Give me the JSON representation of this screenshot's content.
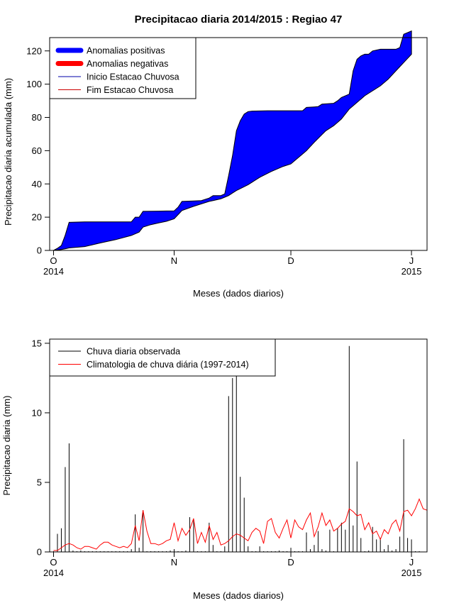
{
  "title": "Precipitacao diaria 2014/2015 : Regiao 47",
  "colors": {
    "positive": "#0000ff",
    "negative": "#ff0000",
    "observed": "#000000",
    "climatology": "#ff0000"
  },
  "chart_data": [
    {
      "type": "area",
      "name": "accumulated",
      "title": "Precipitacao diaria 2014/2015 : Regiao 47",
      "xlabel": "Meses (dados diarios)",
      "ylabel": "Precipitacao diaria acumulada (mm)",
      "xlim": [
        -1,
        96
      ],
      "ylim": [
        0,
        128
      ],
      "xticks": [
        {
          "day": 0,
          "label": "O",
          "year": "2014"
        },
        {
          "day": 31,
          "label": "N",
          "year": ""
        },
        {
          "day": 61,
          "label": "D",
          "year": ""
        },
        {
          "day": 92,
          "label": "J",
          "year": "2015"
        }
      ],
      "yticks": [
        0,
        20,
        40,
        60,
        80,
        100,
        120
      ],
      "legend": {
        "position": "top-left",
        "entries": [
          {
            "label": "Anomalias positivas",
            "style": "thick",
            "color": "#0000ff"
          },
          {
            "label": "Anomalias negativas",
            "style": "thick",
            "color": "#ff0000"
          },
          {
            "label": "Inicio Estacao Chuvosa",
            "style": "line",
            "color": "#0000aa"
          },
          {
            "label": "Fim Estacao Chuvosa",
            "style": "line",
            "color": "#cc0000"
          }
        ]
      },
      "observed_cumulative": [
        [
          0,
          0
        ],
        [
          1,
          1.3
        ],
        [
          2,
          3
        ],
        [
          3,
          9.1
        ],
        [
          4,
          16.9
        ],
        [
          8,
          17.2
        ],
        [
          20,
          17.2
        ],
        [
          21,
          20
        ],
        [
          22,
          20
        ],
        [
          23,
          23.5
        ],
        [
          31,
          23.8
        ],
        [
          32,
          26
        ],
        [
          33,
          29.5
        ],
        [
          38,
          30
        ],
        [
          40,
          31.5
        ],
        [
          41,
          33
        ],
        [
          43,
          33
        ],
        [
          44,
          34
        ],
        [
          45,
          45
        ],
        [
          46,
          57
        ],
        [
          47,
          72
        ],
        [
          48,
          78
        ],
        [
          49,
          82
        ],
        [
          50,
          83.5
        ],
        [
          51,
          83.8
        ],
        [
          55,
          84
        ],
        [
          64,
          84
        ],
        [
          65,
          86
        ],
        [
          68,
          86.5
        ],
        [
          69,
          88
        ],
        [
          72,
          88.5
        ],
        [
          73,
          90
        ],
        [
          74,
          92
        ],
        [
          76,
          94
        ],
        [
          77,
          108
        ],
        [
          78,
          115
        ],
        [
          79,
          117
        ],
        [
          80,
          118
        ],
        [
          81,
          118
        ],
        [
          82,
          120
        ],
        [
          84,
          121
        ],
        [
          88,
          121
        ],
        [
          89,
          122
        ],
        [
          90,
          130
        ],
        [
          91,
          131
        ],
        [
          92,
          132
        ]
      ],
      "climatology_cumulative": [
        [
          0,
          0
        ],
        [
          2,
          0.5
        ],
        [
          4,
          1.5
        ],
        [
          8,
          2.3
        ],
        [
          12,
          4.5
        ],
        [
          16,
          6.5
        ],
        [
          20,
          9
        ],
        [
          22,
          11
        ],
        [
          23,
          14
        ],
        [
          25,
          15.5
        ],
        [
          27,
          16.5
        ],
        [
          29,
          17.5
        ],
        [
          31,
          19
        ],
        [
          33,
          24
        ],
        [
          36,
          26.5
        ],
        [
          40,
          29.5
        ],
        [
          43,
          31
        ],
        [
          45,
          33
        ],
        [
          47,
          36
        ],
        [
          50,
          39.5
        ],
        [
          53,
          44
        ],
        [
          56,
          47.5
        ],
        [
          59,
          50.5
        ],
        [
          61,
          52
        ],
        [
          63,
          56
        ],
        [
          65,
          60
        ],
        [
          67,
          65
        ],
        [
          70,
          72
        ],
        [
          72,
          75
        ],
        [
          74,
          79
        ],
        [
          76,
          85
        ],
        [
          78,
          89
        ],
        [
          80,
          93
        ],
        [
          82,
          96
        ],
        [
          84,
          99
        ],
        [
          86,
          103
        ],
        [
          88,
          108
        ],
        [
          90,
          113
        ],
        [
          92,
          118
        ],
        [
          93,
          120
        ]
      ]
    },
    {
      "type": "bar",
      "name": "daily",
      "xlabel": "Meses (dados diarios)",
      "ylabel": "Precipitacao diaria (mm)",
      "xlim": [
        -1,
        96
      ],
      "ylim": [
        0,
        15.3
      ],
      "xticks": [
        {
          "day": 0,
          "label": "O",
          "year": "2014"
        },
        {
          "day": 31,
          "label": "N",
          "year": ""
        },
        {
          "day": 61,
          "label": "D",
          "year": ""
        },
        {
          "day": 92,
          "label": "J",
          "year": "2015"
        }
      ],
      "yticks": [
        0,
        5,
        10,
        15
      ],
      "legend": {
        "position": "top-left",
        "entries": [
          {
            "label": "Chuva diaria observada",
            "color": "#000000"
          },
          {
            "label": "Climatologia de chuva diária (1997-2014)",
            "color": "#ff0000"
          }
        ]
      },
      "observed_days": [
        0,
        1,
        2,
        3,
        4,
        5,
        6,
        7,
        8,
        9,
        10,
        11,
        12,
        13,
        14,
        15,
        16,
        17,
        18,
        19,
        20,
        21,
        22,
        23,
        24,
        25,
        26,
        27,
        28,
        29,
        30,
        31,
        32,
        33,
        34,
        35,
        36,
        37,
        38,
        39,
        40,
        41,
        42,
        43,
        44,
        45,
        46,
        47,
        48,
        49,
        50,
        51,
        52,
        53,
        54,
        55,
        56,
        57,
        58,
        59,
        60,
        61,
        62,
        63,
        64,
        65,
        66,
        67,
        68,
        69,
        70,
        71,
        72,
        73,
        74,
        75,
        76,
        77,
        78,
        79,
        80,
        81,
        82,
        83,
        84,
        85,
        86,
        87,
        88,
        89,
        90,
        91,
        92,
        93,
        94
      ],
      "observed_values": [
        0,
        1.3,
        1.7,
        6.1,
        7.8,
        0.1,
        0,
        0.1,
        0,
        0,
        0,
        0,
        0,
        0,
        0,
        0,
        0,
        0,
        0,
        0,
        0.2,
        2.7,
        0.3,
        3,
        0,
        0,
        0,
        0,
        0,
        0,
        0.1,
        0.2,
        0,
        0,
        0.1,
        2.5,
        2.4,
        0,
        0,
        0,
        2.1,
        0.5,
        0,
        0,
        0.4,
        11.2,
        12.5,
        13.5,
        5.4,
        3.9,
        0.4,
        0,
        0,
        0.4,
        0,
        0,
        0,
        0,
        0.1,
        0,
        0,
        0.3,
        0,
        0,
        0,
        1.4,
        0.2,
        0.5,
        1.5,
        0.2,
        0.1,
        1.6,
        0,
        1.7,
        2.1,
        1.6,
        14.8,
        1.9,
        6.5,
        1,
        0,
        0.1,
        1.8,
        0.9,
        1,
        0.2,
        0.5,
        0.1,
        0.2,
        1.1,
        8.1,
        1,
        0.9,
        0,
        0
      ],
      "climatology_days": [
        0,
        1,
        2,
        3,
        4,
        5,
        6,
        7,
        8,
        9,
        10,
        11,
        12,
        13,
        14,
        15,
        16,
        17,
        18,
        19,
        20,
        21,
        22,
        23,
        24,
        25,
        26,
        27,
        28,
        29,
        30,
        31,
        32,
        33,
        34,
        35,
        36,
        37,
        38,
        39,
        40,
        41,
        42,
        43,
        44,
        45,
        46,
        47,
        48,
        49,
        50,
        51,
        52,
        53,
        54,
        55,
        56,
        57,
        58,
        59,
        60,
        61,
        62,
        63,
        64,
        65,
        66,
        67,
        68,
        69,
        70,
        71,
        72,
        73,
        74,
        75,
        76,
        77,
        78,
        79,
        80,
        81,
        82,
        83,
        84,
        85,
        86,
        87,
        88,
        89,
        90,
        91,
        92,
        93,
        94,
        95,
        96
      ],
      "climatology_values": [
        0.1,
        0.1,
        0.3,
        0.5,
        0.6,
        0.5,
        0.3,
        0.2,
        0.4,
        0.4,
        0.3,
        0.2,
        0.5,
        0.7,
        0.7,
        0.5,
        0.4,
        0.3,
        0.4,
        0.3,
        0.6,
        1.9,
        0.8,
        3,
        1.5,
        0.6,
        0.6,
        0.5,
        0.6,
        0.8,
        0.9,
        2.1,
        0.8,
        1.7,
        1.2,
        1.6,
        2.4,
        0.6,
        1.4,
        0.7,
        1.9,
        0.9,
        1.4,
        0.5,
        0.6,
        0.8,
        1.1,
        1.3,
        1.2,
        1,
        0.8,
        1.4,
        1.7,
        1.5,
        0.6,
        2.2,
        2.4,
        1.4,
        1,
        1.7,
        2.3,
        1,
        2.3,
        1.8,
        1.6,
        2.3,
        2.8,
        1.1,
        1.8,
        2.8,
        1.9,
        2.3,
        1.5,
        1.7,
        2,
        2.2,
        3.1,
        2.9,
        2.6,
        2.7,
        1.6,
        2.1,
        1.3,
        1.5,
        0.9,
        1.6,
        1.3,
        2,
        2.3,
        1.5,
        2.9,
        3,
        2.6,
        3.1,
        3.8,
        3.1,
        3
      ]
    }
  ]
}
